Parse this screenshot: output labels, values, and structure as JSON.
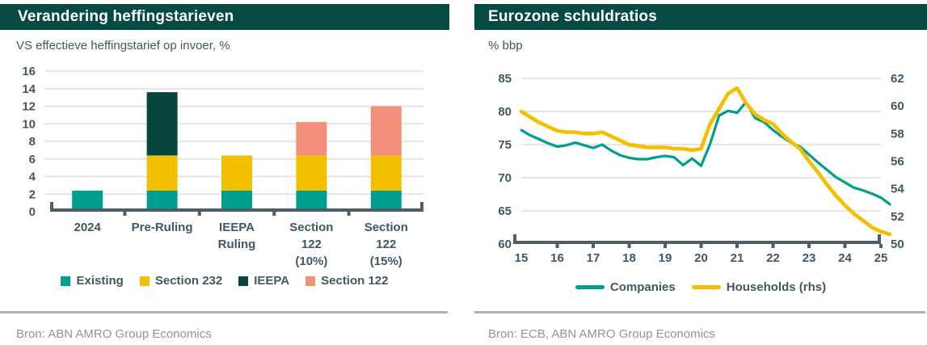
{
  "panels": {
    "left": {
      "title": "Verandering heffingstarieven",
      "subtitle": "VS effectieve heffingstarief op invoer, %",
      "source": "Bron: ABN AMRO Group Economics"
    },
    "right": {
      "title": "Eurozone schuldratios",
      "subtitle": "% bbp",
      "source": "Bron: ECB, ABN AMRO Group Economics"
    }
  },
  "colors": {
    "header_bg": "#074A43",
    "teal": "#009E8E",
    "yellow": "#F3C000",
    "dark_green": "#07453E",
    "salmon": "#F28E79",
    "axis_text": "#3F5864",
    "grid": "#DEDEDE",
    "axis_line": "#4D5E69",
    "source_text": "#8F959B",
    "separator": "#AFAFAF"
  },
  "chart_data": [
    {
      "type": "bar",
      "stacked": true,
      "title": "Verandering heffingstarieven",
      "subtitle": "VS effectieve heffingstarief op invoer, %",
      "categories": [
        "2024",
        "Pre-Ruling",
        "IEEPA\nRuling",
        "Section\n122\n(10%)",
        "Section\n122\n(15%)"
      ],
      "series": [
        {
          "name": "Existing",
          "color": "#009E8E",
          "values": [
            2.4,
            2.4,
            2.4,
            2.4,
            2.4
          ]
        },
        {
          "name": "Section 232",
          "color": "#F3C000",
          "values": [
            0,
            4.0,
            4.0,
            4.0,
            4.0
          ]
        },
        {
          "name": "IEEPA",
          "color": "#07453E",
          "values": [
            0,
            7.2,
            0,
            0,
            0
          ]
        },
        {
          "name": "Section 122",
          "color": "#F28E79",
          "values": [
            0,
            0,
            0,
            3.8,
            5.6
          ]
        }
      ],
      "stack_totals": [
        2.4,
        13.6,
        6.4,
        10.2,
        12.0
      ],
      "yticks": [
        0,
        2,
        4,
        6,
        8,
        10,
        12,
        14,
        16
      ],
      "ylim": [
        0,
        16
      ],
      "grid": true,
      "legend_position": "bottom"
    },
    {
      "type": "line",
      "title": "Eurozone schuldratios",
      "subtitle": "% bbp",
      "x_start": 15,
      "x_step": 0.25,
      "xticks": [
        "15",
        "16",
        "17",
        "18",
        "19",
        "20",
        "21",
        "22",
        "23",
        "24",
        "25"
      ],
      "left_axis": {
        "label_side": "left",
        "ticks": [
          85,
          80,
          75,
          70,
          65,
          60
        ],
        "lim": [
          60,
          85
        ]
      },
      "right_axis": {
        "label_side": "right",
        "ticks": [
          62,
          60,
          58,
          56,
          54,
          52,
          50
        ],
        "lim": [
          50,
          62
        ]
      },
      "grid": true,
      "legend_position": "bottom",
      "series": [
        {
          "name": "Companies",
          "axis": "left",
          "color": "#009E8E",
          "values": [
            77.2,
            76.4,
            75.8,
            75.2,
            74.7,
            74.9,
            75.3,
            74.9,
            74.5,
            75.0,
            74.1,
            73.4,
            73.0,
            72.8,
            72.8,
            73.1,
            73.3,
            73.1,
            71.9,
            72.9,
            71.8,
            75.1,
            79.4,
            80.1,
            79.8,
            81.4,
            79.0,
            78.4,
            77.2,
            76.2,
            75.3,
            74.7,
            73.5,
            72.3,
            71.2,
            70.1,
            69.3,
            68.5,
            68.1,
            67.6,
            67.0,
            66.0
          ]
        },
        {
          "name": "Households (rhs)",
          "axis": "right",
          "color": "#F3C000",
          "values": [
            59.6,
            59.2,
            58.8,
            58.5,
            58.2,
            58.1,
            58.1,
            58.0,
            58.0,
            58.1,
            57.8,
            57.5,
            57.2,
            57.1,
            57.0,
            57.0,
            57.0,
            56.9,
            56.9,
            56.8,
            56.9,
            58.7,
            59.8,
            60.9,
            61.3,
            60.2,
            59.4,
            59.0,
            58.7,
            58.0,
            57.4,
            56.9,
            56.0,
            55.2,
            54.3,
            53.5,
            52.8,
            52.2,
            51.7,
            51.2,
            50.9,
            50.7
          ]
        }
      ]
    }
  ]
}
